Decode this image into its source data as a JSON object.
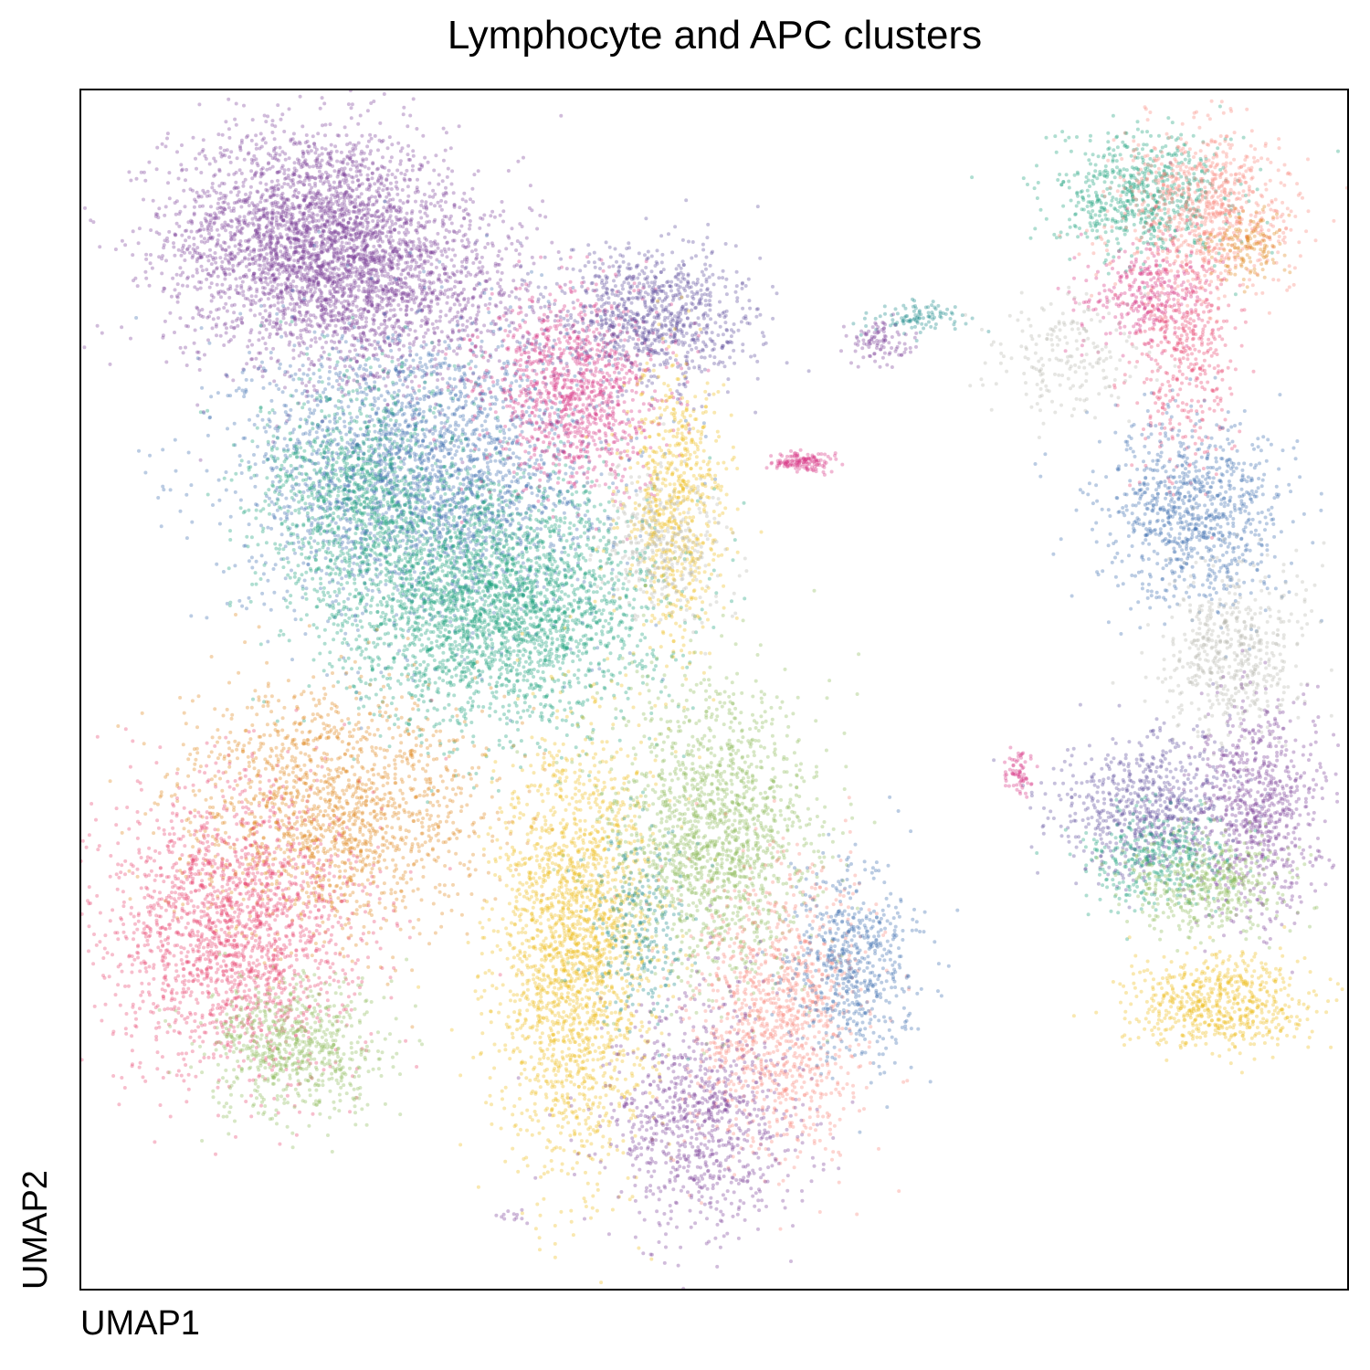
{
  "chart_data": {
    "type": "scatter",
    "title": "Lymphocyte and APC clusters",
    "xlabel": "UMAP1",
    "ylabel": "UMAP2",
    "xlim": [
      0,
      100
    ],
    "ylim": [
      0,
      100
    ],
    "ticks": false,
    "grid": false,
    "legend": "none",
    "point_alpha": 0.35,
    "palette": {
      "purple": "#7b3f98",
      "indigo": "#5b4b9a",
      "blue": "#3d6cb0",
      "teal": "#1aa07a",
      "magenta": "#d63384",
      "rose": "#e8456f",
      "salmon": "#f8877c",
      "orange": "#e0861e",
      "gold": "#efbd1c",
      "green": "#8bbb5a",
      "gray": "#b8b8b0",
      "darkteal": "#1a8a8a"
    },
    "clusters": [
      {
        "color": "purple",
        "cx": 18,
        "cy": 88,
        "sx": 5.5,
        "sy": 4.5,
        "n": 2600
      },
      {
        "color": "purple",
        "cx": 24,
        "cy": 83,
        "sx": 6,
        "sy": 4,
        "n": 1400
      },
      {
        "color": "blue",
        "cx": 27,
        "cy": 68,
        "sx": 7,
        "sy": 6,
        "n": 2600
      },
      {
        "color": "teal",
        "cx": 33,
        "cy": 57,
        "sx": 6,
        "sy": 5,
        "n": 2800
      },
      {
        "color": "teal",
        "cx": 22,
        "cy": 66,
        "sx": 4,
        "sy": 5,
        "n": 1100
      },
      {
        "color": "magenta",
        "cx": 39,
        "cy": 75,
        "sx": 3.5,
        "sy": 4,
        "n": 1100
      },
      {
        "color": "indigo",
        "cx": 45,
        "cy": 81,
        "sx": 4,
        "sy": 3,
        "n": 900
      },
      {
        "color": "gold",
        "cx": 47,
        "cy": 65,
        "sx": 2,
        "sy": 6,
        "n": 700
      },
      {
        "color": "gray",
        "cx": 46,
        "cy": 62,
        "sx": 2.5,
        "sy": 3,
        "n": 350
      },
      {
        "color": "orange",
        "cx": 20,
        "cy": 40,
        "sx": 6,
        "sy": 5,
        "n": 1600
      },
      {
        "color": "rose",
        "cx": 12,
        "cy": 30,
        "sx": 5,
        "sy": 6,
        "n": 2000
      },
      {
        "color": "green",
        "cx": 17,
        "cy": 20,
        "sx": 3.5,
        "sy": 3,
        "n": 700
      },
      {
        "color": "gold",
        "cx": 39,
        "cy": 28,
        "sx": 3,
        "sy": 9,
        "n": 2200
      },
      {
        "color": "green",
        "cx": 50,
        "cy": 38,
        "sx": 4,
        "sy": 6,
        "n": 1600
      },
      {
        "color": "salmon",
        "cx": 55,
        "cy": 23,
        "sx": 3.5,
        "sy": 6,
        "n": 1100
      },
      {
        "color": "blue",
        "cx": 61,
        "cy": 27,
        "sx": 2.5,
        "sy": 4,
        "n": 600
      },
      {
        "color": "purple",
        "cx": 49,
        "cy": 14,
        "sx": 3.5,
        "sy": 5,
        "n": 900
      },
      {
        "color": "darkteal",
        "cx": 44,
        "cy": 30,
        "sx": 2,
        "sy": 4,
        "n": 250
      },
      {
        "color": "teal",
        "cx": 84,
        "cy": 91,
        "sx": 3.5,
        "sy": 2.5,
        "n": 650
      },
      {
        "color": "salmon",
        "cx": 89,
        "cy": 90,
        "sx": 3.5,
        "sy": 3.5,
        "n": 800
      },
      {
        "color": "orange",
        "cx": 92,
        "cy": 87,
        "sx": 1.5,
        "sy": 1.5,
        "n": 150
      },
      {
        "color": "magenta",
        "cx": 84,
        "cy": 83,
        "sx": 2.5,
        "sy": 2,
        "n": 300
      },
      {
        "color": "rose",
        "cx": 87,
        "cy": 78,
        "sx": 2,
        "sy": 5,
        "n": 450
      },
      {
        "color": "blue",
        "cx": 88,
        "cy": 65,
        "sx": 3.5,
        "sy": 4,
        "n": 900
      },
      {
        "color": "gray",
        "cx": 91,
        "cy": 53,
        "sx": 3,
        "sy": 3.5,
        "n": 550
      },
      {
        "color": "indigo",
        "cx": 84,
        "cy": 40,
        "sx": 3.5,
        "sy": 3,
        "n": 700
      },
      {
        "color": "purple",
        "cx": 93,
        "cy": 40,
        "sx": 2.5,
        "sy": 4.5,
        "n": 750
      },
      {
        "color": "teal",
        "cx": 85,
        "cy": 36,
        "sx": 3,
        "sy": 2,
        "n": 350
      },
      {
        "color": "green",
        "cx": 89,
        "cy": 34,
        "sx": 3,
        "sy": 2,
        "n": 450
      },
      {
        "color": "gold",
        "cx": 90,
        "cy": 24,
        "sx": 3.5,
        "sy": 2,
        "n": 650
      },
      {
        "color": "gray",
        "cx": 78,
        "cy": 78,
        "sx": 3,
        "sy": 2.5,
        "n": 200
      },
      {
        "color": "darkteal",
        "cx": 66,
        "cy": 81,
        "sx": 2,
        "sy": 0.6,
        "n": 100
      },
      {
        "color": "purple",
        "cx": 63,
        "cy": 79,
        "sx": 1.2,
        "sy": 0.8,
        "n": 100
      },
      {
        "color": "magenta",
        "cx": 57,
        "cy": 69,
        "sx": 1.2,
        "sy": 0.4,
        "n": 140
      },
      {
        "color": "magenta",
        "cx": 74,
        "cy": 43,
        "sx": 0.6,
        "sy": 0.8,
        "n": 70
      },
      {
        "color": "purple",
        "cx": 34,
        "cy": 6,
        "sx": 0.8,
        "sy": 0.4,
        "n": 12
      }
    ]
  }
}
